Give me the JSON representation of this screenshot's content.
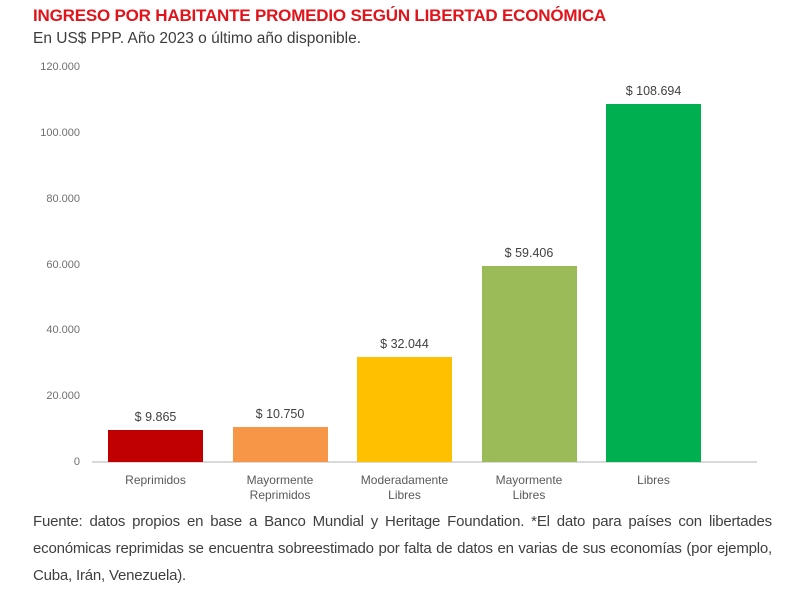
{
  "header": {
    "title": "INGRESO POR HABITANTE PROMEDIO SEGÚN LIBERTAD ECONÓMICA",
    "subtitle": "En US$ PPP. Año 2023 o último año disponible."
  },
  "footer": {
    "text": "Fuente: datos propios en base a Banco Mundial y Heritage Foundation. *El dato para países con libertades económicas reprimidas se encuentra sobreestimado por falta de datos en varias de sus economías (por ejemplo, Cuba, Irán, Venezuela)."
  },
  "colors": {
    "title_red": "#e2141b",
    "axis_line": "#d9d9d9",
    "tick_label": "#6f6f6f",
    "category_label": "#595959",
    "value_label": "#404040"
  },
  "chart_data": {
    "type": "bar",
    "title": "INGRESO POR HABITANTE PROMEDIO SEGÚN LIBERTAD ECONÓMICA",
    "subtitle": "En US$ PPP. Año 2023 o último año disponible.",
    "categories": [
      "Reprimidos",
      "Mayormente\nReprimidos",
      "Moderadamente\nLibres",
      "Mayormente\nLibres",
      "Libres"
    ],
    "values": [
      9865,
      10750,
      32044,
      59406,
      108694
    ],
    "value_labels": [
      "$ 9.865",
      "$ 10.750",
      "$ 32.044",
      "$ 59.406",
      "$ 108.694"
    ],
    "bar_colors": [
      "#c00000",
      "#f79646",
      "#ffc000",
      "#9bbb59",
      "#00b050"
    ],
    "xlabel": "",
    "ylabel": "",
    "ylim": [
      0,
      120000
    ],
    "ytick_step": 20000,
    "ytick_labels": [
      "0",
      "20.000",
      "40.000",
      "60.000",
      "80.000",
      "100.000",
      "120.000"
    ],
    "grid": false,
    "legend": false
  }
}
